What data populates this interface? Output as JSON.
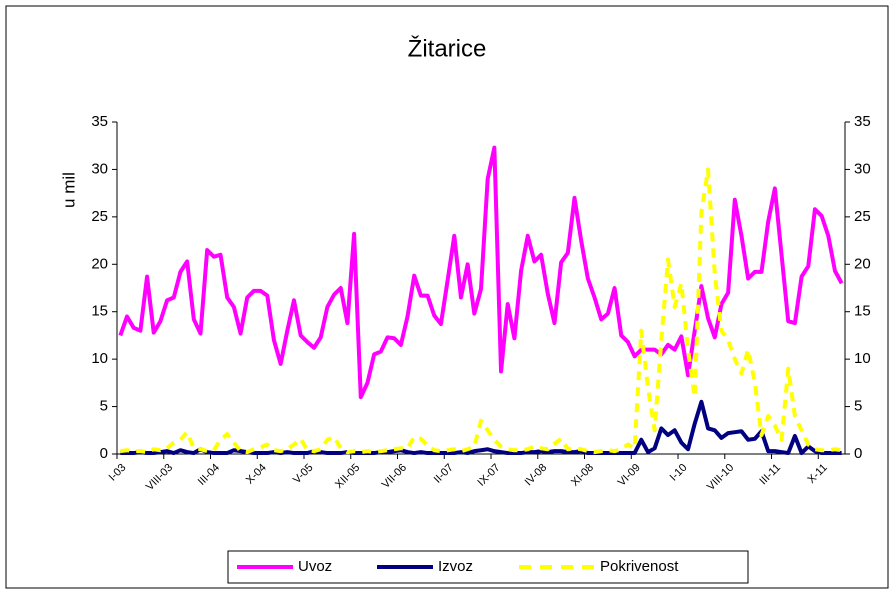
{
  "chart_data": {
    "type": "line",
    "title": "Žitarice",
    "y_label": "u mil",
    "categories": [
      "I-03",
      null,
      null,
      null,
      null,
      null,
      null,
      "VIII-03",
      null,
      null,
      null,
      null,
      null,
      null,
      "III-04",
      null,
      null,
      null,
      null,
      null,
      null,
      "X-04",
      null,
      null,
      null,
      null,
      null,
      null,
      "V-05",
      null,
      null,
      null,
      null,
      null,
      null,
      "XII-05",
      null,
      null,
      null,
      null,
      null,
      null,
      "VII-06",
      null,
      null,
      null,
      null,
      null,
      null,
      "II-07",
      null,
      null,
      null,
      null,
      null,
      null,
      "IX-07",
      null,
      null,
      null,
      null,
      null,
      null,
      "IV-08",
      null,
      null,
      null,
      null,
      null,
      null,
      "XI-08",
      null,
      null,
      null,
      null,
      null,
      null,
      "VI-09",
      null,
      null,
      null,
      null,
      null,
      null,
      "I-10",
      null,
      null,
      null,
      null,
      null,
      null,
      "VIII-10",
      null,
      null,
      null,
      null,
      null,
      null,
      "III-11",
      null,
      null,
      null,
      null,
      null,
      null,
      "X-11",
      null,
      null,
      null
    ],
    "series": [
      {
        "name": "Uvoz",
        "color": "#ff00ff",
        "dash": false,
        "values": [
          12.5,
          14.5,
          13.3,
          13,
          18.7,
          12.8,
          14,
          16.2,
          16.5,
          19.2,
          20.3,
          14.2,
          12.7,
          21.5,
          20.8,
          21,
          16.5,
          15.5,
          12.7,
          16.5,
          17.2,
          17.2,
          16.7,
          12,
          9.5,
          13,
          16.2,
          12.5,
          11.8,
          11.2,
          12.3,
          15.5,
          16.8,
          17.5,
          13.8,
          23.2,
          6,
          7.5,
          10.5,
          10.8,
          12.3,
          12.2,
          11.5,
          14.5,
          18.8,
          16.7,
          16.7,
          14.6,
          13.7,
          18.3,
          23,
          16.5,
          20,
          14.8,
          17.4,
          29,
          32.3,
          8.7,
          15.8,
          12.2,
          19.3,
          23,
          20.3,
          21,
          16.9,
          13.8,
          20.2,
          21.2,
          27,
          22.5,
          18.5,
          16.5,
          14.2,
          14.8,
          17.5,
          12.5,
          11.8,
          10.3,
          11,
          11,
          11,
          10.5,
          11.5,
          11,
          12.4,
          8.3,
          13,
          17.7,
          14.3,
          12.3,
          15.8,
          17,
          26.8,
          23,
          18.5,
          19.2,
          19.2,
          24.5,
          28,
          21,
          14,
          13.8,
          18.7,
          19.8,
          25.8,
          25.1,
          23,
          19.3,
          18
        ]
      },
      {
        "name": "Izvoz",
        "color": "#000080",
        "dash": false,
        "values": [
          0.1,
          0.1,
          0.1,
          0.2,
          0.1,
          0.1,
          0.2,
          0.3,
          0.1,
          0.4,
          0.2,
          0.1,
          0.5,
          0.2,
          0.1,
          0.1,
          0.1,
          0.4,
          0.3,
          0.2,
          0.1,
          0.1,
          0.1,
          0.2,
          0.1,
          0.2,
          0.1,
          0.1,
          0.1,
          0.3,
          0.2,
          0.1,
          0.1,
          0.1,
          0.2,
          0.1,
          0.1,
          0.1,
          0.1,
          0.2,
          0.2,
          0.3,
          0.4,
          0.2,
          0.1,
          0.2,
          0.1,
          0.1,
          0.1,
          0.1,
          0.1,
          0.2,
          0.1,
          0.3,
          0.4,
          0.5,
          0.3,
          0.2,
          0.1,
          0.1,
          0.1,
          0.2,
          0.2,
          0.3,
          0.2,
          0.3,
          0.3,
          0.2,
          0.2,
          0.3,
          0.1,
          0.1,
          0.1,
          0.1,
          0.1,
          0.1,
          0.1,
          0.1,
          1.5,
          0.2,
          0.6,
          2.7,
          2,
          2.5,
          1.2,
          0.5,
          3.2,
          5.5,
          2.7,
          2.5,
          1.7,
          2.2,
          2.3,
          2.4,
          1.5,
          1.6,
          2.4,
          0.3,
          0.3,
          0.2,
          0.1,
          1.9,
          0.1,
          0.8,
          0.3,
          0.1,
          0.1,
          0.1,
          0.1
        ]
      },
      {
        "name": "Pokrivenost",
        "color": "#ffff00",
        "dash": true,
        "axis": "y2",
        "values": [
          0.3,
          0.4,
          0.3,
          0.3,
          0.2,
          0.5,
          0.4,
          0.6,
          1.2,
          1.5,
          2.3,
          0.6,
          0.5,
          0.3,
          0.4,
          1.5,
          2.1,
          1.2,
          0.3,
          0.2,
          0.5,
          0.7,
          1.0,
          0.4,
          0.3,
          0.5,
          1.0,
          1.6,
          0.4,
          0.3,
          0.5,
          1.5,
          1.8,
          0.6,
          0.2,
          0.3,
          0.2,
          0.3,
          0.2,
          0.3,
          0.4,
          0.5,
          0.6,
          0.6,
          1.8,
          1.6,
          0.9,
          0.4,
          0.3,
          0.4,
          0.5,
          0.3,
          0.5,
          0.8,
          3.5,
          2.5,
          1.5,
          0.8,
          0.5,
          0.4,
          0.4,
          0.5,
          0.8,
          0.6,
          0.5,
          1.1,
          1.6,
          0.5,
          0.6,
          0.5,
          0.3,
          0.2,
          0.3,
          0.4,
          0.3,
          0.5,
          1.0,
          0.6,
          13,
          7,
          2.5,
          12,
          20.5,
          15.5,
          18,
          11,
          6,
          25.5,
          30,
          19,
          13,
          12,
          10,
          8.5,
          11,
          7.5,
          2,
          4,
          3,
          1.5,
          9,
          4,
          2.5,
          1,
          0.5,
          0.4,
          0.4,
          0.5,
          0.4
        ]
      }
    ],
    "ylim": [
      0,
      35
    ],
    "yticks": [
      0,
      5,
      10,
      15,
      20,
      25,
      30,
      35
    ],
    "y2lim": [
      0,
      35
    ],
    "y2ticks": [
      0,
      5,
      10,
      15,
      20,
      25,
      30,
      35
    ],
    "grid": false,
    "legend": "bottom"
  }
}
